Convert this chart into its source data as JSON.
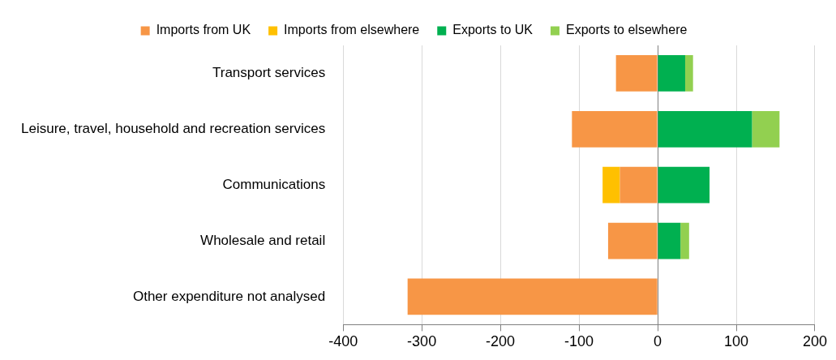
{
  "chart_data": {
    "type": "bar",
    "orientation": "horizontal",
    "stacked": true,
    "categories": [
      "Transport services",
      "Leisure, travel, household and recreation services",
      "Communications",
      "Wholesale and retail",
      "Other expenditure not analysed"
    ],
    "series": [
      {
        "name": "Imports from UK",
        "color": "#f79646",
        "values": [
          -53,
          -109,
          -48,
          -63,
          -318
        ]
      },
      {
        "name": "Imports from elsewhere",
        "color": "#ffc000",
        "values": [
          null,
          null,
          -22,
          null,
          null
        ]
      },
      {
        "name": "Exports to UK",
        "color": "#00b050",
        "values": [
          35,
          120,
          66,
          29,
          null
        ]
      },
      {
        "name": "Exports to elsewhere",
        "color": "#92d050",
        "values": [
          10,
          35,
          null,
          11,
          null
        ]
      }
    ],
    "xlim": [
      -400,
      200
    ],
    "xticks": [
      -400,
      -300,
      -200,
      -100,
      0,
      100,
      200
    ],
    "grid": "x",
    "legend": "top"
  }
}
